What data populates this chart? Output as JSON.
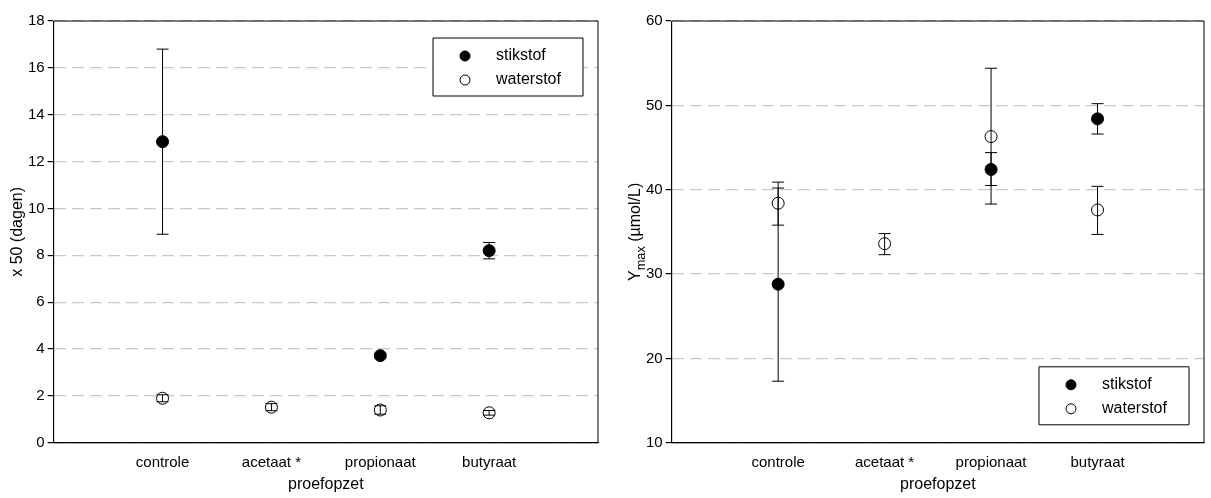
{
  "chart_data": [
    {
      "type": "scatter",
      "xlabel": "proefopzet",
      "ylabel": "x 50 (dagen)",
      "categories": [
        "controle",
        "acetaat *",
        "propionaat",
        "butyraat"
      ],
      "ylim": [
        0,
        18
      ],
      "yticks": [
        0,
        2,
        4,
        6,
        8,
        10,
        12,
        14,
        16,
        18
      ],
      "grid": "y",
      "legend": "top right",
      "marker": "circle",
      "series": [
        {
          "name": "stikstof",
          "color": "#000000",
          "values": [
            12.85,
            null,
            3.72,
            8.2
          ],
          "errors": [
            [
              8.9,
              16.8
            ],
            null,
            [
              3.62,
              3.82
            ],
            [
              7.85,
              8.55
            ]
          ]
        },
        {
          "name": "waterstof",
          "color": "#ffffff",
          "values": [
            1.9,
            1.52,
            1.4,
            1.28
          ],
          "errors": [
            [
              1.75,
              2.05
            ],
            [
              1.37,
              1.67
            ],
            [
              1.22,
              1.58
            ],
            [
              1.18,
              1.38
            ]
          ]
        }
      ]
    },
    {
      "type": "scatter",
      "xlabel": "proefopzet",
      "ylabel": "Y$_{max}$ (µmol/L)",
      "categories": [
        "controle",
        "acetaat *",
        "propionaat",
        "butyraat"
      ],
      "ylim": [
        10,
        60
      ],
      "yticks": [
        10,
        20,
        30,
        40,
        50,
        60
      ],
      "grid": "y",
      "legend": "bottom right",
      "marker": "circle",
      "series": [
        {
          "name": "stikstof",
          "color": "#000000",
          "values": [
            28.8,
            null,
            42.4,
            48.4
          ],
          "errors": [
            [
              17.3,
              40.2
            ],
            null,
            [
              40.5,
              44.4
            ],
            [
              46.6,
              50.2
            ]
          ]
        },
        {
          "name": "waterstof",
          "color": "#ffffff",
          "values": [
            38.4,
            33.6,
            46.3,
            37.6
          ],
          "errors": [
            [
              35.8,
              40.9
            ],
            [
              32.3,
              34.8
            ],
            [
              38.3,
              54.4
            ],
            [
              34.7,
              40.4
            ]
          ]
        }
      ]
    }
  ]
}
